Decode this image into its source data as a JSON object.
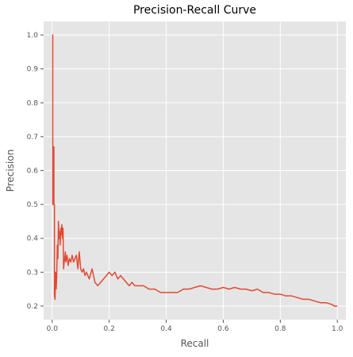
{
  "chart_data": {
    "type": "line",
    "title": "Precision-Recall Curve",
    "xlabel": "Recall",
    "ylabel": "Precision",
    "xlim": [
      -0.03,
      1.03
    ],
    "ylim": [
      0.16,
      1.04
    ],
    "xticks": [
      0.0,
      0.2,
      0.4,
      0.6,
      0.8,
      1.0
    ],
    "xtick_labels": [
      "0.0",
      "0.2",
      "0.4",
      "0.6",
      "0.8",
      "1.0"
    ],
    "yticks": [
      0.2,
      0.3,
      0.4,
      0.5,
      0.6,
      0.7,
      0.8,
      0.9,
      1.0
    ],
    "ytick_labels": [
      "0.2",
      "0.3",
      "0.4",
      "0.5",
      "0.6",
      "0.7",
      "0.8",
      "0.9",
      "1.0"
    ],
    "grid": true,
    "background": "#e5e5e5",
    "grid_color": "#ffffff",
    "line_color": "#e24a33",
    "series": [
      {
        "x": [
          0.0,
          0.002,
          0.002,
          0.004,
          0.004,
          0.006,
          0.006,
          0.008,
          0.008,
          0.01,
          0.012,
          0.014,
          0.016,
          0.018,
          0.02,
          0.022,
          0.024,
          0.026,
          0.028,
          0.03,
          0.032,
          0.034,
          0.036,
          0.038,
          0.04,
          0.042,
          0.044,
          0.046,
          0.048,
          0.052,
          0.056,
          0.06,
          0.065,
          0.07,
          0.075,
          0.08,
          0.085,
          0.09,
          0.095,
          0.1,
          0.105,
          0.11,
          0.115,
          0.12,
          0.13,
          0.14,
          0.15,
          0.16,
          0.17,
          0.18,
          0.19,
          0.2,
          0.21,
          0.22,
          0.23,
          0.24,
          0.25,
          0.26,
          0.27,
          0.28,
          0.29,
          0.3,
          0.32,
          0.34,
          0.36,
          0.38,
          0.4,
          0.42,
          0.44,
          0.46,
          0.48,
          0.5,
          0.52,
          0.54,
          0.56,
          0.58,
          0.6,
          0.62,
          0.64,
          0.66,
          0.68,
          0.7,
          0.72,
          0.74,
          0.76,
          0.78,
          0.8,
          0.82,
          0.84,
          0.86,
          0.88,
          0.9,
          0.92,
          0.94,
          0.96,
          0.98,
          0.99,
          1.0
        ],
        "y": [
          1.0,
          1.0,
          0.5,
          0.5,
          0.67,
          0.67,
          0.5,
          0.5,
          0.23,
          0.22,
          0.3,
          0.25,
          0.29,
          0.38,
          0.34,
          0.45,
          0.4,
          0.42,
          0.38,
          0.43,
          0.41,
          0.44,
          0.4,
          0.43,
          0.31,
          0.33,
          0.34,
          0.36,
          0.33,
          0.35,
          0.32,
          0.34,
          0.33,
          0.35,
          0.33,
          0.34,
          0.35,
          0.31,
          0.36,
          0.31,
          0.3,
          0.31,
          0.29,
          0.3,
          0.28,
          0.31,
          0.27,
          0.26,
          0.27,
          0.28,
          0.29,
          0.3,
          0.29,
          0.3,
          0.28,
          0.29,
          0.28,
          0.27,
          0.26,
          0.27,
          0.26,
          0.26,
          0.26,
          0.25,
          0.25,
          0.24,
          0.24,
          0.24,
          0.24,
          0.25,
          0.25,
          0.255,
          0.26,
          0.255,
          0.25,
          0.25,
          0.255,
          0.25,
          0.255,
          0.25,
          0.25,
          0.245,
          0.25,
          0.24,
          0.24,
          0.235,
          0.235,
          0.23,
          0.23,
          0.225,
          0.22,
          0.22,
          0.215,
          0.21,
          0.21,
          0.205,
          0.2,
          0.2
        ]
      }
    ]
  }
}
